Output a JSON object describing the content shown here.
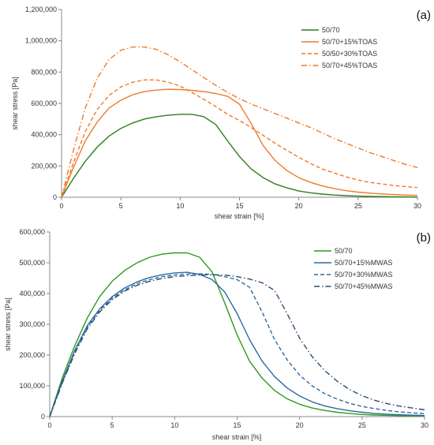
{
  "chart_data": [
    {
      "type": "line",
      "panel_label": "(a)",
      "xlabel": "shear strain [%]",
      "ylabel": "shear stress [Pa]",
      "xlim": [
        0,
        30
      ],
      "ylim": [
        0,
        1200000
      ],
      "xticks": [
        0,
        5,
        10,
        15,
        20,
        25,
        30
      ],
      "yticks": [
        0,
        200000,
        400000,
        600000,
        800000,
        1000000,
        1200000
      ],
      "ytick_labels": [
        "0",
        "200,000",
        "400,000",
        "600,000",
        "800,000",
        "1,000,000",
        "1,200,000"
      ],
      "grid": false,
      "legend": "top-right",
      "series": [
        {
          "name": "50/70",
          "color": "#2e7d1f",
          "dash": "solid",
          "x": [
            0,
            1,
            2,
            3,
            4,
            5,
            6,
            7,
            8,
            9,
            10,
            11,
            12,
            13,
            14,
            15,
            16,
            17,
            18,
            19,
            20,
            21,
            22,
            23,
            24,
            25,
            26,
            27,
            28,
            29,
            30
          ],
          "y": [
            0,
            120000,
            230000,
            320000,
            390000,
            440000,
            475000,
            500000,
            515000,
            525000,
            530000,
            530000,
            515000,
            465000,
            360000,
            260000,
            180000,
            125000,
            85000,
            60000,
            40000,
            28000,
            20000,
            14000,
            10000,
            7000,
            5000,
            4000,
            3000,
            2000,
            1500
          ]
        },
        {
          "name": "50/70+15%TOAS",
          "color": "#f07a2a",
          "dash": "solid",
          "x": [
            0,
            1,
            2,
            3,
            4,
            5,
            6,
            7,
            8,
            9,
            10,
            11,
            12,
            13,
            14,
            15,
            16,
            17,
            18,
            19,
            20,
            21,
            22,
            23,
            24,
            25,
            26,
            27,
            28,
            29,
            30
          ],
          "y": [
            0,
            190000,
            360000,
            480000,
            570000,
            620000,
            655000,
            675000,
            685000,
            690000,
            688000,
            683000,
            675000,
            663000,
            645000,
            595000,
            470000,
            330000,
            235000,
            170000,
            125000,
            95000,
            72000,
            55000,
            42000,
            33000,
            26000,
            21000,
            17000,
            14000,
            12000
          ]
        },
        {
          "name": "50/50+30%TOAS",
          "color": "#f07a2a",
          "dash": "dashed",
          "x": [
            0,
            1,
            2,
            3,
            4,
            5,
            6,
            7,
            8,
            9,
            10,
            11,
            12,
            13,
            14,
            15,
            16,
            17,
            18,
            19,
            20,
            21,
            22,
            23,
            24,
            25,
            26,
            27,
            28,
            29,
            30
          ],
          "y": [
            0,
            220000,
            420000,
            560000,
            650000,
            705000,
            735000,
            750000,
            750000,
            735000,
            710000,
            670000,
            625000,
            580000,
            530000,
            490000,
            445000,
            395000,
            345000,
            300000,
            255000,
            215000,
            180000,
            155000,
            130000,
            110000,
            95000,
            85000,
            75000,
            68000,
            62000
          ]
        },
        {
          "name": "50/70+45%TOAS",
          "color": "#f07a2a",
          "dash": "dashdot",
          "x": [
            0,
            1,
            2,
            3,
            4,
            5,
            6,
            7,
            8,
            9,
            10,
            11,
            12,
            13,
            14,
            15,
            16,
            17,
            18,
            19,
            20,
            21,
            22,
            23,
            24,
            25,
            26,
            27,
            28,
            29,
            30
          ],
          "y": [
            0,
            300000,
            570000,
            760000,
            880000,
            940000,
            960000,
            960000,
            945000,
            910000,
            865000,
            815000,
            765000,
            715000,
            670000,
            630000,
            595000,
            565000,
            535000,
            505000,
            475000,
            445000,
            410000,
            375000,
            345000,
            315000,
            285000,
            260000,
            235000,
            210000,
            190000
          ]
        }
      ]
    },
    {
      "type": "line",
      "panel_label": "(b)",
      "xlabel": "shear strain [%]",
      "ylabel": "shear stress [Pa]",
      "xlim": [
        0,
        30
      ],
      "ylim": [
        0,
        600000
      ],
      "xticks": [
        0,
        5,
        10,
        15,
        20,
        25,
        30
      ],
      "yticks": [
        0,
        100000,
        200000,
        300000,
        400000,
        500000,
        600000
      ],
      "ytick_labels": [
        "0",
        "100,000",
        "200,000",
        "300,000",
        "400,000",
        "500,000",
        "600,000"
      ],
      "grid": false,
      "legend": "top-right",
      "series": [
        {
          "name": "50/70",
          "color": "#2f9a1f",
          "dash": "solid",
          "x": [
            0,
            1,
            2,
            3,
            4,
            5,
            6,
            7,
            8,
            9,
            10,
            11,
            12,
            13,
            14,
            15,
            16,
            17,
            18,
            19,
            20,
            21,
            22,
            23,
            24,
            25,
            26,
            27,
            28,
            29,
            30
          ],
          "y": [
            0,
            125000,
            230000,
            320000,
            390000,
            440000,
            475000,
            500000,
            518000,
            528000,
            532000,
            532000,
            518000,
            470000,
            370000,
            265000,
            180000,
            125000,
            85000,
            58000,
            40000,
            28000,
            20000,
            14000,
            10000,
            7000,
            5000,
            4000,
            3000,
            2500,
            2000
          ]
        },
        {
          "name": "50/70+15%MWAS",
          "color": "#2e6aa0",
          "dash": "solid",
          "x": [
            0,
            1,
            2,
            3,
            4,
            5,
            6,
            7,
            8,
            9,
            10,
            11,
            12,
            13,
            14,
            15,
            16,
            17,
            18,
            19,
            20,
            21,
            22,
            23,
            24,
            25,
            26,
            27,
            28,
            29,
            30
          ],
          "y": [
            0,
            115000,
            215000,
            295000,
            350000,
            390000,
            418000,
            438000,
            452000,
            461000,
            467000,
            469000,
            462000,
            445000,
            405000,
            335000,
            250000,
            180000,
            130000,
            93000,
            67000,
            48000,
            35000,
            26000,
            19000,
            14000,
            10000,
            8000,
            6000,
            4500,
            3500
          ]
        },
        {
          "name": "50/70+30%MWAS",
          "color": "#2e6aa0",
          "dash": "dashed",
          "x": [
            0,
            1,
            2,
            3,
            4,
            5,
            6,
            7,
            8,
            9,
            10,
            11,
            12,
            13,
            14,
            15,
            16,
            17,
            18,
            19,
            20,
            21,
            22,
            23,
            24,
            25,
            26,
            27,
            28,
            29,
            30
          ],
          "y": [
            0,
            110000,
            210000,
            290000,
            345000,
            385000,
            412000,
            432000,
            445000,
            455000,
            460000,
            463000,
            464000,
            462000,
            455000,
            445000,
            420000,
            340000,
            250000,
            185000,
            135000,
            100000,
            75000,
            57000,
            43000,
            33000,
            26000,
            20000,
            15000,
            12000,
            10000
          ]
        },
        {
          "name": "50/70+45%MWAS",
          "color": "#2e4f70",
          "dash": "dashdot",
          "x": [
            0,
            1,
            2,
            3,
            4,
            5,
            6,
            7,
            8,
            9,
            10,
            11,
            12,
            13,
            14,
            15,
            16,
            17,
            18,
            19,
            20,
            21,
            22,
            23,
            24,
            25,
            26,
            27,
            28,
            29,
            30
          ],
          "y": [
            0,
            108000,
            205000,
            285000,
            340000,
            380000,
            408000,
            427000,
            440000,
            449000,
            455000,
            458000,
            460000,
            461000,
            460000,
            455000,
            447000,
            435000,
            410000,
            335000,
            255000,
            195000,
            150000,
            115000,
            88000,
            68000,
            53000,
            42000,
            34000,
            28000,
            22000
          ]
        }
      ]
    }
  ]
}
